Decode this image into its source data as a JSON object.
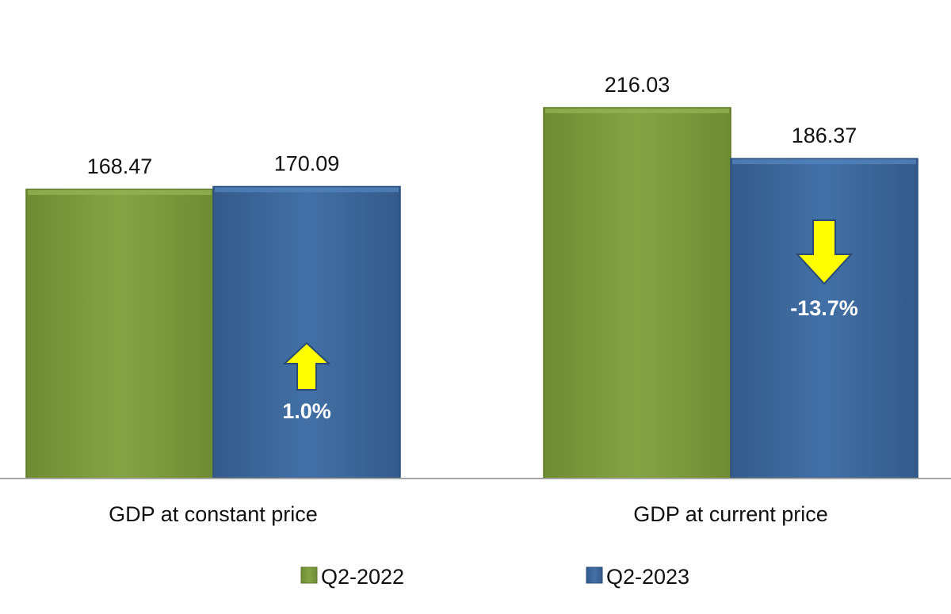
{
  "chart_data": {
    "type": "bar",
    "categories": [
      "GDP at constant price",
      "GDP at current price"
    ],
    "series": [
      {
        "name": "Q2-2022",
        "values": [
          168.47,
          216.03
        ],
        "color": "#7a9a3a"
      },
      {
        "name": "Q2-2023",
        "values": [
          170.09,
          186.37
        ],
        "color": "#3a6396"
      }
    ],
    "value_labels": [
      [
        "168.47",
        "216.03"
      ],
      [
        "170.09",
        "186.37"
      ]
    ],
    "changes": [
      {
        "category_index": 0,
        "label": "1.0%",
        "direction": "up"
      },
      {
        "category_index": 1,
        "label": "-13.7%",
        "direction": "down"
      }
    ],
    "arrow_color": "#ffff00",
    "ylim": [
      0,
      240
    ],
    "title": "",
    "xlabel": "",
    "ylabel": "",
    "grid": false,
    "legend_position": "bottom"
  }
}
